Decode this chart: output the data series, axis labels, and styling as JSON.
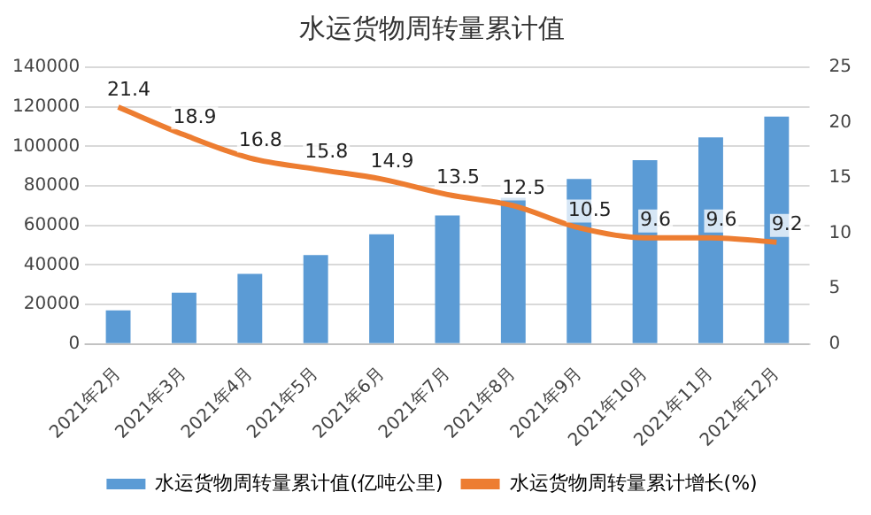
{
  "chart_data": {
    "type": "bar",
    "title": "水运货物周转量累计值",
    "categories": [
      "2021年2月",
      "2021年3月",
      "2021年4月",
      "2021年5月",
      "2021年6月",
      "2021年7月",
      "2021年8月",
      "2021年9月",
      "2021年10月",
      "2021年11月",
      "2021年12月"
    ],
    "series": [
      {
        "name": "水运货物周转量累计值(亿吨公里)",
        "color": "#5b9bd5",
        "values": [
          17000,
          26000,
          35500,
          45000,
          55500,
          65000,
          74000,
          83500,
          93000,
          104500,
          115000
        ]
      },
      {
        "name": "水运货物周转量累计增长(%)",
        "type": "line",
        "axis": "y2",
        "color": "#ed7d31",
        "values": [
          21.4,
          18.9,
          16.8,
          15.8,
          14.9,
          13.5,
          12.5,
          10.5,
          9.6,
          9.6,
          9.2
        ],
        "value_labels": [
          "21.4",
          "18.9",
          "16.8",
          "15.8",
          "14.9",
          "13.5",
          "12.5",
          "10.5",
          "9.6",
          "9.6",
          "9.2"
        ]
      }
    ],
    "ylim": [
      0,
      140000
    ],
    "yticks": [
      0,
      20000,
      40000,
      60000,
      80000,
      100000,
      120000,
      140000
    ],
    "y2lim": [
      0,
      25
    ],
    "y2ticks": [
      0,
      5,
      10,
      15,
      20,
      25
    ],
    "grid": "y",
    "legend": "bottom",
    "marker": "none"
  }
}
